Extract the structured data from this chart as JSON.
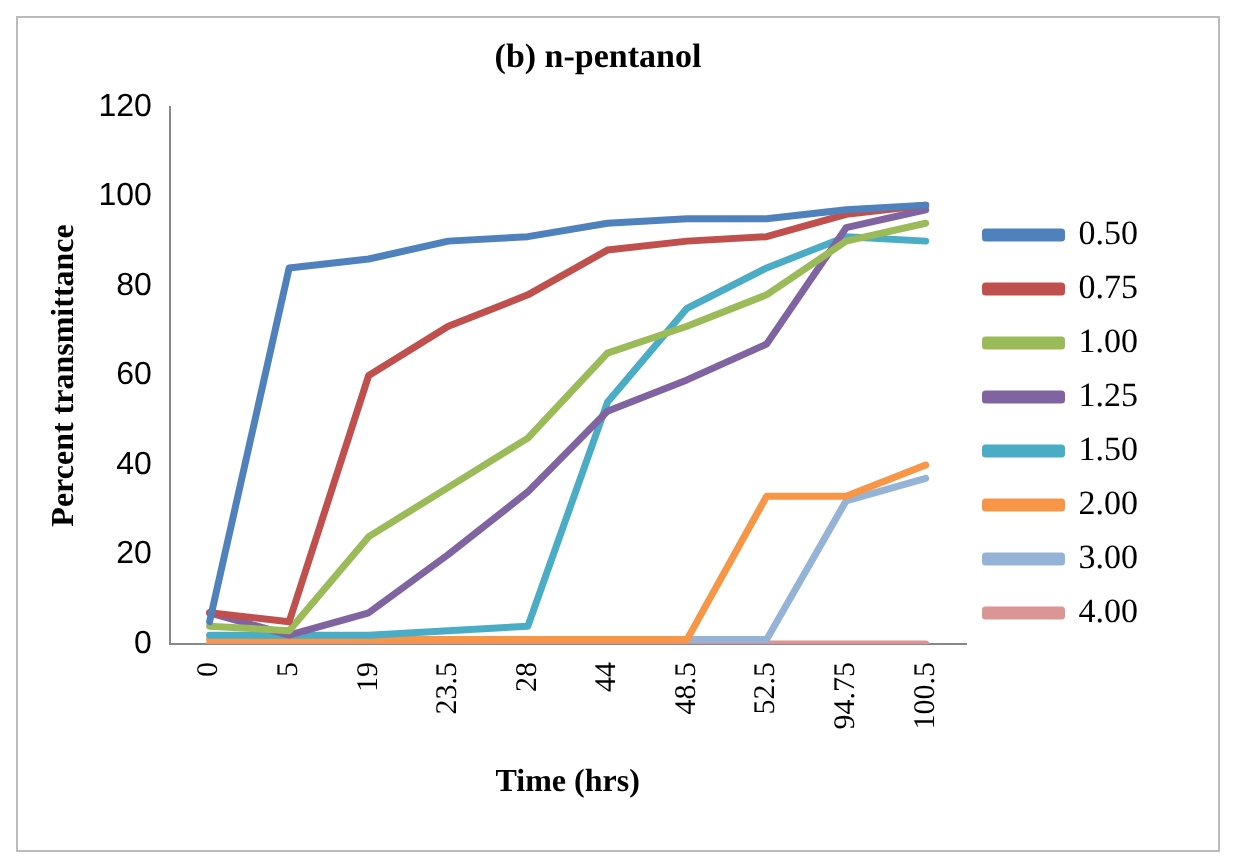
{
  "chart_data": {
    "type": "line",
    "title": "(b) n-pentanol",
    "xlabel": "Time (hrs)",
    "ylabel": "Percent transmittance",
    "categories": [
      "0",
      "5",
      "19",
      "23.5",
      "28",
      "44",
      "48.5",
      "52.5",
      "94.75",
      "100.5"
    ],
    "series": [
      {
        "name": "0.50",
        "color": "#4f81bd",
        "values": [
          5,
          84,
          86,
          90,
          91,
          94,
          95,
          95,
          97,
          98
        ]
      },
      {
        "name": "0.75",
        "color": "#c0504d",
        "values": [
          7,
          5,
          60,
          71,
          78,
          88,
          90,
          91,
          96,
          98
        ]
      },
      {
        "name": "1.00",
        "color": "#9bbb59",
        "values": [
          4,
          3,
          24,
          35,
          46,
          65,
          71,
          78,
          90,
          94
        ]
      },
      {
        "name": "1.25",
        "color": "#8064a2",
        "values": [
          7,
          2,
          7,
          20,
          34,
          52,
          59,
          67,
          93,
          97
        ]
      },
      {
        "name": "1.50",
        "color": "#4bacc6",
        "values": [
          2,
          2,
          2,
          3,
          4,
          54,
          75,
          84,
          91,
          90
        ]
      },
      {
        "name": "2.00",
        "color": "#f79646",
        "values": [
          1,
          1,
          1,
          1,
          1,
          1,
          1,
          33,
          33,
          40
        ]
      },
      {
        "name": "3.00",
        "color": "#95b3d7",
        "values": [
          null,
          null,
          null,
          null,
          null,
          null,
          1,
          1,
          32,
          37
        ]
      },
      {
        "name": "4.00",
        "color": "#d99694",
        "values": [
          0,
          0,
          0,
          0,
          0,
          0,
          0,
          0,
          0,
          0
        ]
      }
    ],
    "ylim": [
      0,
      120
    ],
    "yticks": [
      0,
      20,
      40,
      60,
      80,
      100,
      120
    ],
    "grid": false,
    "legend": "right",
    "marker": "none",
    "line_style": "solid"
  }
}
